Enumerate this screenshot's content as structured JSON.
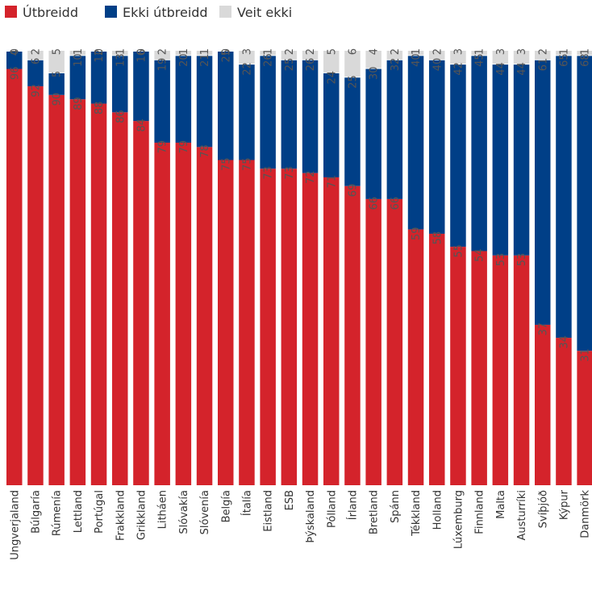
{
  "chart_data": {
    "type": "bar",
    "stacked": true,
    "percent": true,
    "ylim": [
      0,
      100
    ],
    "grid": false,
    "legend_position": "top-left",
    "colors": [
      "#d4232b",
      "#003f87",
      "#d9d9d9"
    ],
    "categories": [
      "Ungverjaland",
      "Búlgaría",
      "Rúmenía",
      "Lettland",
      "Portúgal",
      "Frakkland",
      "Grikkland",
      "Litháen",
      "Slóvakía",
      "Slóvenía",
      "Belgía",
      "Ítalía",
      "Eistland",
      "ESB",
      "Þýskaland",
      "Pólland",
      "Írland",
      "Bretland",
      "Spánn",
      "Tékkland",
      "Holland",
      "Lúxemburg",
      "Finnland",
      "Malta",
      "Austurríki",
      "Svíþjóð",
      "Kýpur",
      "Danmörk"
    ],
    "series": [
      {
        "name": "Útbreidd",
        "values": [
          96,
          92,
          90,
          89,
          88,
          86,
          84,
          79,
          79,
          78,
          75,
          75,
          73,
          73,
          72,
          71,
          69,
          66,
          66,
          59,
          58,
          55,
          54,
          53,
          53,
          37,
          34,
          31
        ]
      },
      {
        "name": "Ekki útbreidd",
        "values": [
          4,
          6,
          5,
          10,
          12,
          13,
          16,
          19,
          20,
          21,
          25,
          22,
          26,
          25,
          26,
          24,
          25,
          30,
          32,
          40,
          40,
          42,
          45,
          44,
          44,
          61,
          65,
          68
        ]
      },
      {
        "name": "Veit ekki",
        "values": [
          0,
          2,
          5,
          1,
          0,
          1,
          0,
          2,
          1,
          1,
          0,
          3,
          1,
          2,
          2,
          5,
          6,
          4,
          2,
          1,
          2,
          3,
          1,
          3,
          3,
          2,
          1,
          1
        ]
      }
    ]
  }
}
